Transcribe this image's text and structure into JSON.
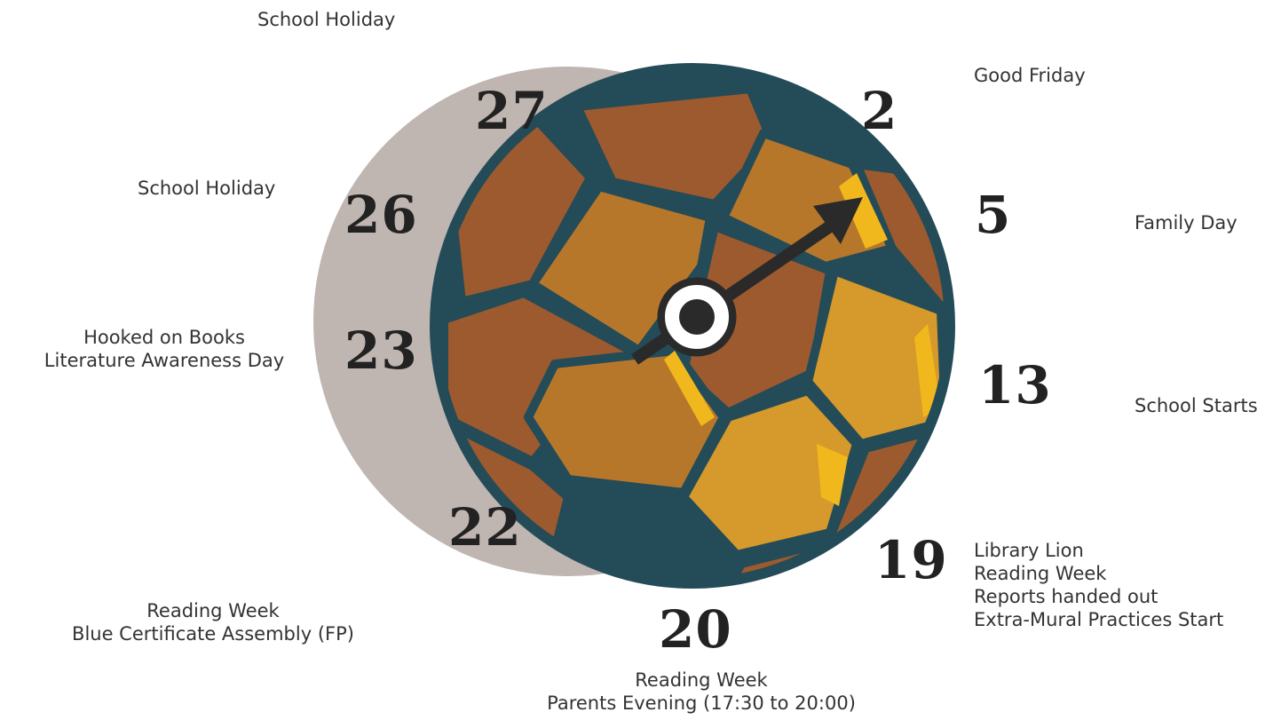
{
  "colors": {
    "shadow_disc": "#bfb5b1",
    "ball_outline": "#244b58",
    "panel_dark": "#9d5a2e",
    "panel_mid": "#b7772b",
    "panel_light": "#d6992b",
    "panel_highlight": "#f0b81c",
    "arrow": "#2a2a2a"
  },
  "icons": {
    "ball": "soccer-ball-icon",
    "arrow": "pointer-arrow-icon"
  },
  "events": [
    {
      "day": "27",
      "lines": [
        "School Holiday"
      ]
    },
    {
      "day": "2",
      "lines": [
        "Good Friday"
      ]
    },
    {
      "day": "26",
      "lines": [
        "School Holiday"
      ]
    },
    {
      "day": "5",
      "lines": [
        "Family Day"
      ]
    },
    {
      "day": "23",
      "lines": [
        "Hooked on Books",
        "Literature Awareness Day"
      ]
    },
    {
      "day": "13",
      "lines": [
        "School Starts"
      ]
    },
    {
      "day": "22",
      "lines": [
        "Reading Week",
        "Blue Certificate Assembly (FP)"
      ]
    },
    {
      "day": "19",
      "lines": [
        "Library Lion",
        "Reading Week",
        "Reports handed out",
        "Extra-Mural Practices Start"
      ]
    },
    {
      "day": "20",
      "lines": [
        "Reading Week",
        "Parents Evening (17:30 to 20:00)"
      ]
    }
  ]
}
